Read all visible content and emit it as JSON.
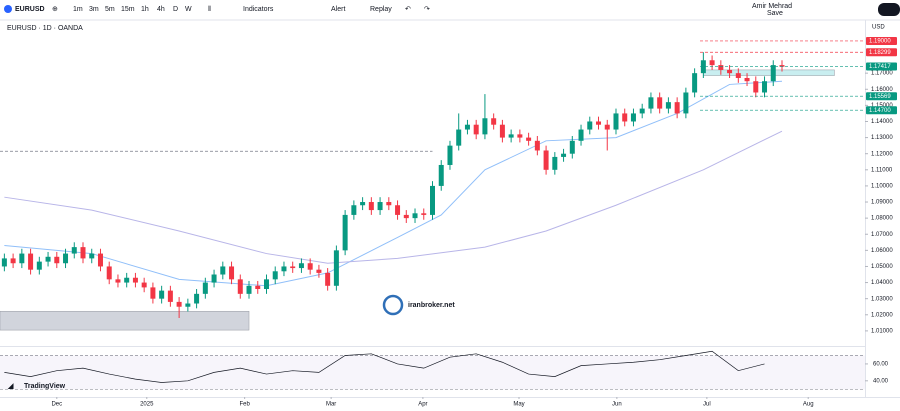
{
  "toolbar": {
    "symbol": "EURUSD",
    "intervals": [
      "1m",
      "3m",
      "5m",
      "15m",
      "1h",
      "4h",
      "D",
      "W"
    ],
    "indicators": "Indicators",
    "alert": "Alert",
    "replay": "Replay",
    "user": "Amir Mehrad",
    "save": "Save"
  },
  "chart_data": {
    "type": "candlestick",
    "title": "EURUSD · 1D · OANDA",
    "currency": "USD",
    "watermark": "iranbroker.net",
    "brand": "TradingView",
    "up_color": "#089981",
    "down_color": "#f23645",
    "open": [
      1.05,
      1.055,
      1.052,
      1.058,
      1.048,
      1.053,
      1.056,
      1.052,
      1.058,
      1.062,
      1.055,
      1.058,
      1.05,
      1.042,
      1.04,
      1.043,
      1.04,
      1.037,
      1.03,
      1.035,
      1.028,
      1.025,
      1.027,
      1.033,
      1.04,
      1.045,
      1.05,
      1.042,
      1.033,
      1.038,
      1.036,
      1.042,
      1.047,
      1.05,
      1.049,
      1.052,
      1.048,
      1.046,
      1.038,
      1.06,
      1.082,
      1.088,
      1.09,
      1.085,
      1.09,
      1.088,
      1.082,
      1.08,
      1.083,
      1.082,
      1.1,
      1.113,
      1.125,
      1.135,
      1.138,
      1.132,
      1.142,
      1.138,
      1.13,
      1.132,
      1.13,
      1.128,
      1.122,
      1.11,
      1.118,
      1.12,
      1.128,
      1.135,
      1.14,
      1.138,
      1.135,
      1.145,
      1.14,
      1.145,
      1.148,
      1.155,
      1.148,
      1.152,
      1.145,
      1.158,
      1.17,
      1.178,
      1.175,
      1.172,
      1.17,
      1.167,
      1.165,
      1.158,
      1.165,
      1.175
    ],
    "high": [
      1.058,
      1.058,
      1.061,
      1.061,
      1.056,
      1.059,
      1.059,
      1.061,
      1.065,
      1.065,
      1.061,
      1.061,
      1.053,
      1.045,
      1.046,
      1.046,
      1.043,
      1.04,
      1.038,
      1.038,
      1.031,
      1.03,
      1.036,
      1.043,
      1.048,
      1.053,
      1.053,
      1.045,
      1.041,
      1.041,
      1.045,
      1.05,
      1.053,
      1.053,
      1.055,
      1.055,
      1.051,
      1.049,
      1.063,
      1.085,
      1.091,
      1.093,
      1.093,
      1.093,
      1.093,
      1.091,
      1.085,
      1.086,
      1.086,
      1.103,
      1.116,
      1.128,
      1.145,
      1.141,
      1.141,
      1.157,
      1.145,
      1.141,
      1.135,
      1.135,
      1.133,
      1.131,
      1.125,
      1.121,
      1.123,
      1.131,
      1.138,
      1.143,
      1.143,
      1.141,
      1.148,
      1.148,
      1.148,
      1.151,
      1.158,
      1.158,
      1.155,
      1.155,
      1.161,
      1.173,
      1.183,
      1.181,
      1.178,
      1.175,
      1.173,
      1.17,
      1.168,
      1.168,
      1.178,
      1.178
    ],
    "low": [
      1.047,
      1.049,
      1.049,
      1.045,
      1.045,
      1.05,
      1.049,
      1.049,
      1.055,
      1.052,
      1.052,
      1.047,
      1.039,
      1.037,
      1.037,
      1.037,
      1.034,
      1.027,
      1.027,
      1.025,
      1.018,
      1.022,
      1.024,
      1.03,
      1.037,
      1.042,
      1.039,
      1.03,
      1.03,
      1.033,
      1.033,
      1.039,
      1.044,
      1.046,
      1.046,
      1.045,
      1.043,
      1.035,
      1.035,
      1.057,
      1.079,
      1.085,
      1.082,
      1.082,
      1.085,
      1.079,
      1.077,
      1.077,
      1.079,
      1.079,
      1.097,
      1.11,
      1.122,
      1.132,
      1.129,
      1.129,
      1.135,
      1.127,
      1.127,
      1.127,
      1.125,
      1.119,
      1.107,
      1.107,
      1.115,
      1.117,
      1.125,
      1.132,
      1.135,
      1.122,
      1.132,
      1.137,
      1.137,
      1.142,
      1.145,
      1.145,
      1.145,
      1.142,
      1.142,
      1.155,
      1.167,
      1.172,
      1.169,
      1.167,
      1.164,
      1.162,
      1.155,
      1.155,
      1.162,
      1.171
    ],
    "close": [
      1.055,
      1.052,
      1.058,
      1.048,
      1.053,
      1.056,
      1.052,
      1.058,
      1.062,
      1.055,
      1.058,
      1.05,
      1.042,
      1.04,
      1.043,
      1.04,
      1.037,
      1.03,
      1.035,
      1.028,
      1.025,
      1.027,
      1.033,
      1.04,
      1.045,
      1.05,
      1.042,
      1.033,
      1.038,
      1.036,
      1.042,
      1.047,
      1.05,
      1.049,
      1.052,
      1.048,
      1.046,
      1.038,
      1.06,
      1.082,
      1.088,
      1.09,
      1.085,
      1.09,
      1.088,
      1.082,
      1.08,
      1.083,
      1.082,
      1.1,
      1.113,
      1.125,
      1.135,
      1.138,
      1.132,
      1.142,
      1.138,
      1.13,
      1.132,
      1.13,
      1.128,
      1.122,
      1.11,
      1.118,
      1.12,
      1.128,
      1.135,
      1.14,
      1.138,
      1.135,
      1.145,
      1.14,
      1.145,
      1.148,
      1.155,
      1.148,
      1.152,
      1.145,
      1.158,
      1.17,
      1.178,
      1.175,
      1.172,
      1.17,
      1.167,
      1.165,
      1.158,
      1.165,
      1.175,
      1.174
    ],
    "xlim": [
      -0.5,
      98.5
    ],
    "xticks": [
      {
        "value": 6,
        "label": "Dec"
      },
      {
        "value": 16.3,
        "label": "2025"
      },
      {
        "value": 27.5,
        "label": "Feb"
      },
      {
        "value": 37.4,
        "label": "Mar"
      },
      {
        "value": 47.9,
        "label": "Apr"
      },
      {
        "value": 58.9,
        "label": "May"
      },
      {
        "value": 70.1,
        "label": "Jun"
      },
      {
        "value": 80.4,
        "label": "Jul"
      },
      {
        "value": 92,
        "label": "Aug"
      }
    ],
    "ylim": [
      1.0,
      1.203
    ],
    "yticks": [
      {
        "value": 1.17,
        "label": "1.17000"
      },
      {
        "value": 1.16,
        "label": "1.16000"
      },
      {
        "value": 1.15,
        "label": "1.15000"
      },
      {
        "value": 1.14,
        "label": "1.14000"
      },
      {
        "value": 1.13,
        "label": "1.13000"
      },
      {
        "value": 1.12,
        "label": "1.12000"
      },
      {
        "value": 1.11,
        "label": "1.11000"
      },
      {
        "value": 1.1,
        "label": "1.10000"
      },
      {
        "value": 1.09,
        "label": "1.09000"
      },
      {
        "value": 1.08,
        "label": "1.08000"
      },
      {
        "value": 1.07,
        "label": "1.07000"
      },
      {
        "value": 1.06,
        "label": "1.06000"
      },
      {
        "value": 1.05,
        "label": "1.05000"
      },
      {
        "value": 1.04,
        "label": "1.04000"
      },
      {
        "value": 1.03,
        "label": "1.03000"
      },
      {
        "value": 1.02,
        "label": "1.02000"
      },
      {
        "value": 1.01,
        "label": "1.01000"
      }
    ],
    "moving_averages": [
      {
        "color": "#90bff9",
        "x": [
          0,
          10,
          20,
          30,
          37,
          45,
          50,
          55,
          62,
          70,
          77,
          83,
          89
        ],
        "values": [
          1.063,
          1.058,
          1.042,
          1.038,
          1.046,
          1.068,
          1.082,
          1.11,
          1.128,
          1.13,
          1.145,
          1.163,
          1.165
        ]
      },
      {
        "color": "#b8b5e8",
        "x": [
          0,
          10,
          20,
          30,
          37,
          45,
          55,
          62,
          70,
          80,
          89
        ],
        "values": [
          1.093,
          1.085,
          1.072,
          1.058,
          1.052,
          1.055,
          1.062,
          1.072,
          1.088,
          1.11,
          1.134
        ]
      }
    ],
    "price_lines": [
      {
        "value": 1.19,
        "label": "1.19000",
        "color": "#f23645"
      },
      {
        "value": 1.18299,
        "label": "1.18299",
        "color": "#f23645"
      },
      {
        "value": 1.17417,
        "label": "1.17417",
        "color": "#089981"
      },
      {
        "value": 1.15569,
        "label": "1.15569",
        "color": "#089981"
      },
      {
        "value": 1.147,
        "label": "1.14700",
        "color": "#089981"
      }
    ],
    "zones": [
      {
        "from": 1.0105,
        "to": 1.0222,
        "x": [
          -0.5,
          28
        ],
        "color": "#d1d4dc"
      },
      {
        "from": 1.1685,
        "to": 1.172,
        "x": [
          80,
          95
        ],
        "color": "#c9eef0"
      }
    ],
    "dashed_levels": [
      {
        "value": 1.1215,
        "x": [
          -0.5,
          49
        ]
      }
    ],
    "rsi": {
      "color": "#131722",
      "ylim": [
        22,
        76.5
      ],
      "yticks": [
        {
          "value": 60,
          "label": "60.00"
        },
        {
          "value": 40,
          "label": "40.00"
        }
      ],
      "levels": [
        70,
        30
      ],
      "x": [
        0,
        3,
        6,
        9,
        12,
        15,
        18,
        21,
        24,
        27,
        30,
        33,
        36,
        39,
        42,
        45,
        48,
        51,
        54,
        57,
        60,
        63,
        66,
        69,
        72,
        75,
        78,
        81,
        84,
        87
      ],
      "values": [
        50,
        45,
        52,
        55,
        48,
        42,
        38,
        40,
        50,
        55,
        48,
        52,
        50,
        70,
        72,
        60,
        55,
        68,
        72,
        62,
        48,
        45,
        58,
        60,
        62,
        65,
        70,
        75,
        52,
        60
      ]
    }
  }
}
